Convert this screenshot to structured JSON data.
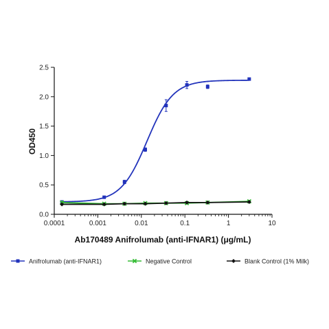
{
  "chart_data": {
    "type": "scatter",
    "xlabel": "Ab170489 Anifrolumab (anti-IFNAR1) (μg/mL)",
    "ylabel": "OD450",
    "x_scale": "log",
    "xlim": [
      0.0001,
      10
    ],
    "ylim": [
      0,
      2.5
    ],
    "x_ticks": [
      "0.0001",
      "0.001",
      "0.01",
      "0.1",
      "1",
      "10"
    ],
    "y_ticks": [
      "0.0",
      "0.5",
      "1.0",
      "1.5",
      "2.0",
      "2.5"
    ],
    "grid": false,
    "legend_position": "bottom",
    "series": [
      {
        "name": "Anifrolumab (anti-IFNAR1)",
        "color": "#2233bb",
        "marker": "square",
        "x": [
          0.00015,
          0.0014,
          0.0041,
          0.0123,
          0.037,
          0.111,
          0.333,
          3.0
        ],
        "y": [
          0.21,
          0.29,
          0.55,
          1.1,
          1.85,
          2.2,
          2.17,
          2.3
        ],
        "error": [
          0.02,
          0.01,
          0.03,
          0.03,
          0.1,
          0.06,
          0.03,
          0.01
        ],
        "fit_curve": {
          "bottom": 0.21,
          "top": 2.28,
          "ec50": 0.0135,
          "hill": 1.45
        }
      },
      {
        "name": "Negative Control",
        "color": "#33bb33",
        "marker": "x",
        "x": [
          0.00015,
          0.0014,
          0.0041,
          0.0123,
          0.037,
          0.111,
          0.333,
          3.0
        ],
        "y": [
          0.2,
          0.18,
          0.18,
          0.19,
          0.19,
          0.19,
          0.2,
          0.22
        ],
        "error": [
          0.02,
          0.01,
          0.01,
          0.01,
          0.01,
          0.01,
          0.01,
          0.01
        ]
      },
      {
        "name": "Blank Control (1% Milk)",
        "color": "#111111",
        "marker": "diamond",
        "x": [
          0.00015,
          0.0014,
          0.0041,
          0.0123,
          0.037,
          0.111,
          0.333,
          3.0
        ],
        "y": [
          0.17,
          0.17,
          0.18,
          0.18,
          0.19,
          0.2,
          0.2,
          0.21
        ],
        "error": [
          0.01,
          0.01,
          0.01,
          0.01,
          0.01,
          0.01,
          0.01,
          0.01
        ]
      }
    ]
  }
}
